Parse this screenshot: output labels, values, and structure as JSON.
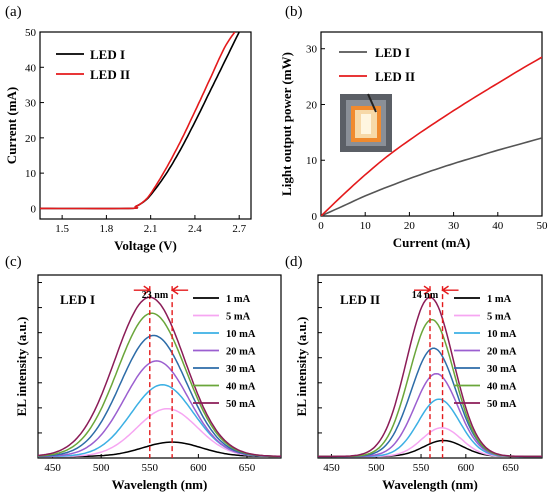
{
  "chart_data": [
    {
      "panel_label": "(a)",
      "type": "line",
      "xlabel": "Voltage (V)",
      "ylabel": "Current (mA)",
      "xlim": [
        1.35,
        2.78
      ],
      "ylim": [
        -3,
        50
      ],
      "xticks": [
        "1.5",
        "1.8",
        "2.1",
        "2.4",
        "2.7"
      ],
      "yticks": [
        "0",
        "10",
        "20",
        "30",
        "40",
        "50"
      ],
      "legend_position": "top-left",
      "series": [
        {
          "name": "LED I",
          "color": "#000000",
          "x": [
            1.35,
            1.95,
            2.0,
            2.05,
            2.1,
            2.2,
            2.3,
            2.4,
            2.5,
            2.6,
            2.7
          ],
          "y": [
            0,
            0,
            0.6,
            1.8,
            3.8,
            9.5,
            16.5,
            24.5,
            33,
            41.5,
            50
          ]
        },
        {
          "name": "LED II",
          "color": "#e41a1c",
          "x": [
            1.35,
            1.95,
            2.0,
            2.05,
            2.1,
            2.2,
            2.3,
            2.4,
            2.5,
            2.6,
            2.67
          ],
          "y": [
            0,
            0,
            0.6,
            1.9,
            4.2,
            11,
            18.8,
            27.5,
            36.5,
            45.5,
            50
          ]
        }
      ]
    },
    {
      "panel_label": "(b)",
      "type": "line",
      "xlabel": "Current (mA)",
      "ylabel": "Light output power (mW)",
      "xlim": [
        0,
        50
      ],
      "ylim": [
        0,
        33
      ],
      "xticks": [
        "0",
        "10",
        "20",
        "30",
        "40",
        "50"
      ],
      "yticks": [
        "0",
        "10",
        "20",
        "30"
      ],
      "legend_position": "top-left",
      "inset": "photo of lit LED chip",
      "series": [
        {
          "name": "LED I",
          "color": "#555555",
          "x": [
            0,
            5,
            10,
            15,
            20,
            25,
            30,
            35,
            40,
            45,
            50
          ],
          "y": [
            0,
            1.8,
            3.6,
            5.2,
            6.7,
            8.1,
            9.4,
            10.6,
            11.8,
            12.9,
            14
          ]
        },
        {
          "name": "LED II",
          "color": "#e41a1c",
          "x": [
            0,
            5,
            10,
            15,
            20,
            25,
            30,
            35,
            40,
            45,
            50
          ],
          "y": [
            0,
            3.8,
            7.4,
            10.7,
            13.6,
            16.3,
            18.9,
            21.4,
            23.8,
            26.2,
            28.5
          ]
        }
      ]
    },
    {
      "panel_label": "(c)",
      "type": "line",
      "title": "LED I",
      "xlabel": "Wavelength (nm)",
      "ylabel": "EL intensity (a.u.)",
      "xlim": [
        435,
        685
      ],
      "ylim": [
        0,
        1.15
      ],
      "xticks": [
        "450",
        "500",
        "550",
        "600",
        "650"
      ],
      "annotation": "23 nm",
      "legend_position": "top-right",
      "series": [
        {
          "name": "1 mA",
          "color": "#000000",
          "peak": 573,
          "height": 0.09,
          "width": 30
        },
        {
          "name": "5 mA",
          "color": "#f6a6f2",
          "peak": 568,
          "height": 0.3,
          "width": 31
        },
        {
          "name": "10 mA",
          "color": "#3cb0e4",
          "peak": 563,
          "height": 0.45,
          "width": 32
        },
        {
          "name": "20 mA",
          "color": "#9b5fd0",
          "peak": 557,
          "height": 0.6,
          "width": 33
        },
        {
          "name": "30 mA",
          "color": "#2d6ca8",
          "peak": 554,
          "height": 0.76,
          "width": 34
        },
        {
          "name": "40 mA",
          "color": "#6aa63a",
          "peak": 552,
          "height": 0.9,
          "width": 35
        },
        {
          "name": "50 mA",
          "color": "#8b1c57",
          "peak": 550,
          "height": 1.0,
          "width": 36
        }
      ]
    },
    {
      "panel_label": "(d)",
      "type": "line",
      "title": "LED II",
      "xlabel": "Wavelength (nm)",
      "ylabel": "EL intensity (a.u.)",
      "xlim": [
        435,
        685
      ],
      "ylim": [
        0,
        1.15
      ],
      "xticks": [
        "450",
        "500",
        "550",
        "600",
        "650"
      ],
      "annotation": "14 nm",
      "legend_position": "top-right",
      "series": [
        {
          "name": "1 mA",
          "color": "#000000",
          "peak": 575,
          "height": 0.1,
          "width": 22
        },
        {
          "name": "5 mA",
          "color": "#f6a6f2",
          "peak": 573,
          "height": 0.18,
          "width": 22
        },
        {
          "name": "10 mA",
          "color": "#3cb0e4",
          "peak": 570,
          "height": 0.36,
          "width": 23
        },
        {
          "name": "20 mA",
          "color": "#9b5fd0",
          "peak": 567,
          "height": 0.52,
          "width": 24
        },
        {
          "name": "30 mA",
          "color": "#2d6ca8",
          "peak": 564,
          "height": 0.68,
          "width": 25
        },
        {
          "name": "40 mA",
          "color": "#6aa63a",
          "peak": 562,
          "height": 0.86,
          "width": 25
        },
        {
          "name": "50 mA",
          "color": "#8b1c57",
          "peak": 560,
          "height": 1.0,
          "width": 26
        }
      ]
    }
  ]
}
